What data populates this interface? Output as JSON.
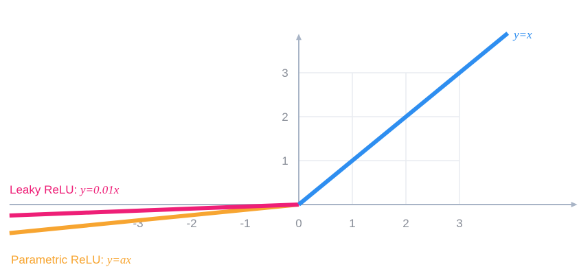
{
  "chart_data": {
    "type": "line",
    "xlim": [
      -5.4,
      5.2
    ],
    "ylim": [
      -0.7,
      3.7
    ],
    "grid": true,
    "x_ticks": [
      {
        "value": -3,
        "label": "-3"
      },
      {
        "value": -2,
        "label": "-2"
      },
      {
        "value": -1,
        "label": "-1"
      },
      {
        "value": 0,
        "label": "0"
      },
      {
        "value": 1,
        "label": "1"
      },
      {
        "value": 2,
        "label": "2"
      },
      {
        "value": 3,
        "label": "3"
      }
    ],
    "y_ticks": [
      {
        "value": 1,
        "label": "1"
      },
      {
        "value": 2,
        "label": "2"
      },
      {
        "value": 3,
        "label": "3"
      }
    ],
    "colors": {
      "axis": "#a8b4c6",
      "grid": "#e9ecf0",
      "relu": "#2e8ef0",
      "leaky": "#ee1f77",
      "parametric": "#f7a531"
    },
    "series": [
      {
        "key": "relu",
        "x": [
          0,
          3.9
        ],
        "y": [
          0,
          3.9
        ]
      },
      {
        "key": "leaky",
        "x": [
          -5.4,
          0
        ],
        "y": [
          -0.25,
          0
        ]
      },
      {
        "key": "parametric",
        "x": [
          -5.4,
          0
        ],
        "y": [
          -0.65,
          0
        ]
      }
    ],
    "annotations": {
      "relu": {
        "formula": "y=x"
      },
      "leaky": {
        "name": "Leaky ReLU: ",
        "formula": "y=0.01x"
      },
      "parametric": {
        "name": "Parametric ReLU: ",
        "formula": "y=ax"
      }
    }
  }
}
